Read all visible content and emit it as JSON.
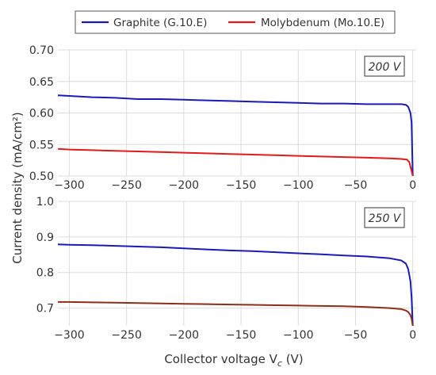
{
  "chart_data": {
    "type": "line",
    "xlabel": "Collector voltage V",
    "xlabel_sub": "c",
    "xlabel_unit": " (V)",
    "ylabel": "Current density (mA/cm²)",
    "xlim": [
      -310,
      3
    ],
    "grid": true,
    "legend": {
      "placement": "top-center",
      "entries": [
        {
          "name": "Graphite (G.10.E)",
          "color": "#1a1ab8"
        },
        {
          "name": "Molybdenum (Mo.10.E)",
          "color": "#e31a1c"
        }
      ]
    },
    "x_ticks": [
      -300,
      -250,
      -200,
      -150,
      -100,
      -50,
      0
    ],
    "x_tick_labels": [
      "−300",
      "−250",
      "−200",
      "−150",
      "−100",
      "−50",
      "0"
    ],
    "panels": [
      {
        "label": "200 V",
        "ylim": [
          0.5,
          0.7
        ],
        "y_ticks": [
          0.5,
          0.55,
          0.6,
          0.65,
          0.7
        ],
        "y_tick_labels": [
          "0.50",
          "0.55",
          "0.60",
          "0.65",
          "0.70"
        ],
        "series": [
          {
            "name": "Graphite (G.10.E)",
            "color": "#1a1ab8",
            "x": [
              -310,
              -300,
              -280,
              -260,
              -240,
              -220,
              -200,
              -180,
              -160,
              -140,
              -120,
              -100,
              -80,
              -60,
              -40,
              -20,
              -10,
              -6,
              -4,
              -2,
              -1,
              0
            ],
            "y": [
              0.628,
              0.627,
              0.625,
              0.624,
              0.622,
              0.622,
              0.621,
              0.62,
              0.619,
              0.618,
              0.617,
              0.616,
              0.615,
              0.615,
              0.614,
              0.614,
              0.614,
              0.613,
              0.61,
              0.6,
              0.585,
              0.5
            ]
          },
          {
            "name": "Molybdenum (Mo.10.E)",
            "color": "#e31a1c",
            "x": [
              -310,
              -300,
              -280,
              -260,
              -240,
              -220,
              -200,
              -180,
              -160,
              -140,
              -120,
              -100,
              -80,
              -60,
              -40,
              -20,
              -10,
              -5,
              -3,
              -2,
              -1,
              0
            ],
            "y": [
              0.543,
              0.542,
              0.541,
              0.54,
              0.539,
              0.538,
              0.537,
              0.536,
              0.535,
              0.534,
              0.533,
              0.532,
              0.531,
              0.53,
              0.529,
              0.528,
              0.527,
              0.526,
              0.522,
              0.515,
              0.508,
              0.5
            ]
          }
        ]
      },
      {
        "label": "250 V",
        "ylim": [
          0.65,
          1.0
        ],
        "y_ticks": [
          0.7,
          0.8,
          0.9,
          1.0
        ],
        "y_tick_labels": [
          "0.7",
          "0.8",
          "0.9",
          "1.0"
        ],
        "series": [
          {
            "name": "Graphite (G.10.E)",
            "color": "#1a1ab8",
            "x": [
              -310,
              -300,
              -280,
              -260,
              -240,
              -220,
              -200,
              -180,
              -160,
              -140,
              -120,
              -100,
              -80,
              -60,
              -40,
              -20,
              -10,
              -6,
              -4,
              -2,
              -1,
              0
            ],
            "y": [
              0.879,
              0.878,
              0.877,
              0.875,
              0.873,
              0.871,
              0.868,
              0.865,
              0.862,
              0.86,
              0.857,
              0.854,
              0.851,
              0.848,
              0.845,
              0.84,
              0.834,
              0.825,
              0.81,
              0.775,
              0.73,
              0.65
            ]
          },
          {
            "name": "Molybdenum (Mo.10.E)",
            "color": "#8b2e1a",
            "x": [
              -310,
              -300,
              -280,
              -260,
              -240,
              -220,
              -200,
              -180,
              -160,
              -140,
              -120,
              -100,
              -80,
              -60,
              -40,
              -20,
              -10,
              -6,
              -4,
              -2,
              -1,
              0
            ],
            "y": [
              0.717,
              0.717,
              0.716,
              0.715,
              0.714,
              0.713,
              0.712,
              0.711,
              0.71,
              0.709,
              0.708,
              0.707,
              0.706,
              0.705,
              0.703,
              0.7,
              0.697,
              0.693,
              0.689,
              0.68,
              0.67,
              0.65
            ]
          }
        ]
      }
    ]
  }
}
